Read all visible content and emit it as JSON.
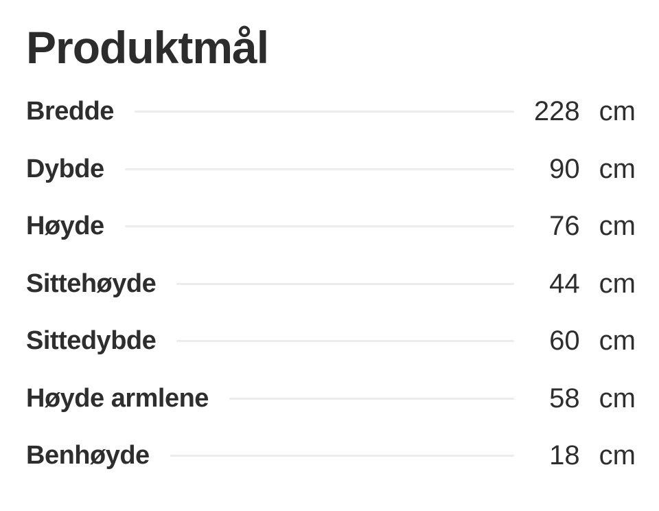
{
  "page": {
    "title": "Produktmål"
  },
  "dimensions": {
    "unit": "cm",
    "rows": [
      {
        "label": "Bredde",
        "value": "228"
      },
      {
        "label": "Dybde",
        "value": "90"
      },
      {
        "label": "Høyde",
        "value": "76"
      },
      {
        "label": "Sittehøyde",
        "value": "44"
      },
      {
        "label": "Sittedybde",
        "value": "60"
      },
      {
        "label": "Høyde armlene",
        "value": "58"
      },
      {
        "label": "Benhøyde",
        "value": "18"
      }
    ]
  },
  "colors": {
    "text": "#2e2e2e",
    "divider": "#ececec",
    "background": "#ffffff"
  }
}
